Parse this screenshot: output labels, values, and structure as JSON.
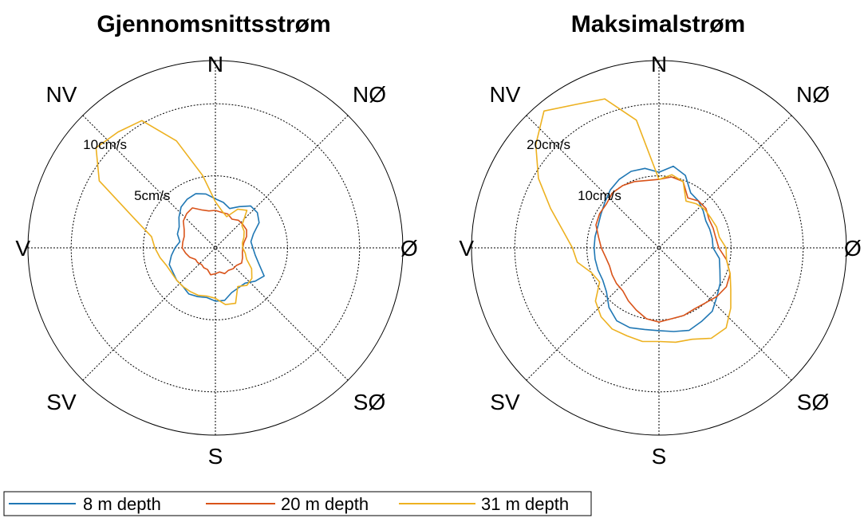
{
  "chart_data": [
    {
      "type": "polar-line",
      "title": "Gjennomsnittsstrøm",
      "directions": [
        "N",
        "NØ",
        "Ø",
        "SØ",
        "S",
        "SV",
        "V",
        "NV"
      ],
      "rmax": 13,
      "rings": [
        {
          "value": 5,
          "label": "5cm/s"
        },
        {
          "value": 10,
          "label": "10cm/s"
        }
      ],
      "series": [
        {
          "name": "8 m depth",
          "color": "#1f77b4",
          "theta": [
            0,
            10,
            20,
            30,
            40,
            50,
            60,
            70,
            80,
            90,
            100,
            110,
            120,
            130,
            140,
            150,
            160,
            170,
            180,
            190,
            200,
            210,
            220,
            230,
            240,
            250,
            260,
            270,
            280,
            290,
            300,
            310,
            320,
            330,
            340,
            350
          ],
          "r": [
            3.4,
            3.2,
            2.9,
            3.3,
            3.8,
            3.8,
            3.5,
            2.8,
            2.5,
            2.6,
            2.8,
            3.2,
            3.9,
            3.6,
            3.2,
            3.2,
            3.3,
            3.7,
            3.7,
            3.5,
            3.6,
            3.7,
            3.5,
            3.5,
            3.4,
            3.4,
            3.1,
            2.8,
            2.5,
            2.8,
            2.9,
            3.3,
            3.7,
            3.9,
            4.0,
            3.8
          ]
        },
        {
          "name": "20 m depth",
          "color": "#d95319",
          "theta": [
            0,
            10,
            20,
            30,
            40,
            50,
            60,
            70,
            80,
            90,
            100,
            110,
            120,
            130,
            140,
            150,
            160,
            170,
            180,
            190,
            200,
            210,
            220,
            230,
            240,
            250,
            260,
            270,
            280,
            290,
            300,
            310,
            320,
            330,
            340,
            350
          ],
          "r": [
            2.6,
            2.5,
            2.5,
            2.3,
            2.5,
            2.5,
            2.5,
            2.3,
            2.0,
            1.9,
            1.9,
            2.0,
            2.1,
            1.9,
            1.9,
            1.8,
            1.9,
            1.7,
            1.8,
            1.9,
            1.6,
            1.6,
            1.5,
            1.6,
            1.6,
            1.9,
            2.1,
            2.3,
            2.3,
            2.3,
            2.5,
            2.9,
            3.1,
            3.2,
            2.8,
            2.6
          ]
        },
        {
          "name": "31 m depth",
          "color": "#edb120",
          "theta": [
            0,
            10,
            20,
            30,
            40,
            50,
            60,
            70,
            80,
            90,
            100,
            110,
            120,
            130,
            140,
            150,
            160,
            170,
            180,
            190,
            200,
            210,
            220,
            230,
            240,
            250,
            260,
            270,
            280,
            290,
            300,
            310,
            320,
            330,
            340,
            350
          ],
          "r": [
            3.2,
            2.6,
            2.3,
            3.1,
            3.4,
            2.4,
            2.3,
            2.1,
            1.9,
            1.9,
            2.1,
            2.3,
            2.9,
            3.3,
            3.4,
            3.1,
            4.1,
            4.0,
            3.5,
            3.4,
            3.5,
            3.5,
            3.5,
            3.5,
            3.5,
            3.6,
            3.9,
            4.2,
            4.5,
            6.0,
            9.3,
            10.8,
            10.5,
            10.2,
            7.9,
            5.1
          ]
        }
      ],
      "legend": "bottom"
    },
    {
      "type": "polar-line",
      "title": "Maksimalstrøm",
      "directions": [
        "N",
        "NØ",
        "Ø",
        "SØ",
        "S",
        "SV",
        "V",
        "NV"
      ],
      "rmax": 26,
      "rings": [
        {
          "value": 10,
          "label": "10cm/s"
        },
        {
          "value": 20,
          "label": "20cm/s"
        }
      ],
      "series": [
        {
          "name": "8 m depth",
          "color": "#1f77b4",
          "theta": [
            0,
            10,
            20,
            30,
            40,
            50,
            60,
            70,
            80,
            90,
            100,
            110,
            120,
            130,
            140,
            150,
            160,
            170,
            180,
            190,
            200,
            210,
            220,
            230,
            240,
            250,
            260,
            270,
            280,
            290,
            300,
            310,
            320,
            330,
            340,
            350
          ],
          "r": [
            10.5,
            11.5,
            10.7,
            8.8,
            8.5,
            8.0,
            7.5,
            7.5,
            7.5,
            7.5,
            8.5,
            9.0,
            9.8,
            10.5,
            11.5,
            11.8,
            12.2,
            11.8,
            11.5,
            11.5,
            11.8,
            11.7,
            10.8,
            9.5,
            9.0,
            9.0,
            9.0,
            9.0,
            9.0,
            9.0,
            9.3,
            9.8,
            10.5,
            11.0,
            11.3,
            11.2
          ]
        },
        {
          "name": "20 m depth",
          "color": "#d95319",
          "theta": [
            0,
            10,
            20,
            30,
            40,
            50,
            60,
            70,
            80,
            90,
            100,
            110,
            120,
            130,
            140,
            150,
            160,
            170,
            180,
            190,
            200,
            210,
            220,
            230,
            240,
            250,
            260,
            270,
            280,
            290,
            300,
            310,
            320,
            330,
            340,
            350
          ],
          "r": [
            9.5,
            10.0,
            9.8,
            8.0,
            8.5,
            8.5,
            8.0,
            8.0,
            8.0,
            8.3,
            9.5,
            10.5,
            10.8,
            10.5,
            10.0,
            9.8,
            10.0,
            10.0,
            10.3,
            10.0,
            9.2,
            8.5,
            7.8,
            7.7,
            7.5,
            7.3,
            7.5,
            8.0,
            8.5,
            9.3,
            9.5,
            9.5,
            10.0,
            10.0,
            9.8,
            9.5
          ]
        },
        {
          "name": "31 m depth",
          "color": "#edb120",
          "theta": [
            0,
            10,
            20,
            30,
            40,
            50,
            60,
            70,
            80,
            90,
            100,
            110,
            120,
            130,
            140,
            150,
            160,
            170,
            180,
            190,
            200,
            210,
            220,
            230,
            240,
            250,
            260,
            270,
            280,
            290,
            300,
            310,
            320,
            330,
            340,
            350
          ],
          "r": [
            9.5,
            10.3,
            9.8,
            7.5,
            8.0,
            8.3,
            8.3,
            8.5,
            8.5,
            9.3,
            9.5,
            10.5,
            11.5,
            13.0,
            14.5,
            14.5,
            13.5,
            13.3,
            13.0,
            13.2,
            13.0,
            13.0,
            12.5,
            11.5,
            9.5,
            10.0,
            11.5,
            12.0,
            13.5,
            16.0,
            19.3,
            22.3,
            24.8,
            23.0,
            22.0,
            18.0
          ]
        }
      ],
      "legend": "bottom"
    }
  ],
  "legend_items": [
    {
      "name": "8 m depth",
      "color": "#1f77b4"
    },
    {
      "name": "20 m depth",
      "color": "#d95319"
    },
    {
      "name": "31 m depth",
      "color": "#edb120"
    }
  ]
}
